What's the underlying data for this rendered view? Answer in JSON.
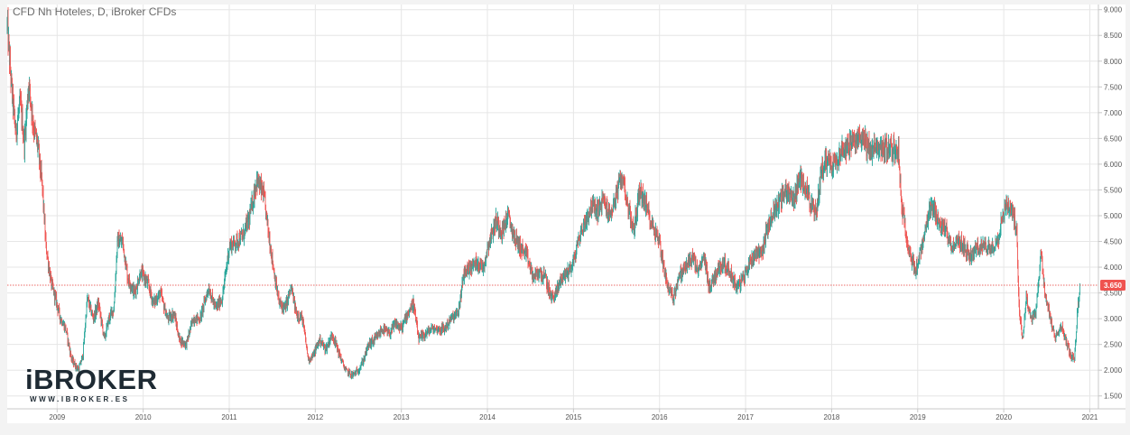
{
  "title": "CFD Nh Hoteles, D, iBroker CFDs",
  "logo": {
    "text": "iBROKER",
    "url": "WWW.IBROKER.ES"
  },
  "colors": {
    "up": "#26a69a",
    "down": "#ef5350",
    "grid": "#e6e6e6",
    "price_line": "#e53935",
    "axis_text": "#555555",
    "last_price_bg": "#ef5350",
    "logo_dark": "#1e2a33",
    "logo_accent": "#2fb3c9"
  },
  "chart_data": {
    "type": "line",
    "style": "candlestick",
    "interval": "D",
    "x_range": [
      2008.42,
      2021.1
    ],
    "ylim": [
      1.25,
      9.1
    ],
    "y_ticks": [
      {
        "value": 1.5,
        "label": "1.500"
      },
      {
        "value": 2.0,
        "label": "2.000"
      },
      {
        "value": 2.5,
        "label": "2.500"
      },
      {
        "value": 3.0,
        "label": "3.000"
      },
      {
        "value": 3.5,
        "label": "3.500"
      },
      {
        "value": 4.0,
        "label": "4.000"
      },
      {
        "value": 4.5,
        "label": "4.500"
      },
      {
        "value": 5.0,
        "label": "5.000"
      },
      {
        "value": 5.5,
        "label": "5.500"
      },
      {
        "value": 6.0,
        "label": "6.000"
      },
      {
        "value": 6.5,
        "label": "6.500"
      },
      {
        "value": 7.0,
        "label": "7.000"
      },
      {
        "value": 7.5,
        "label": "7.500"
      },
      {
        "value": 8.0,
        "label": "8.000"
      },
      {
        "value": 8.5,
        "label": "8.500"
      },
      {
        "value": 9.0,
        "label": "9.000"
      }
    ],
    "x_ticks": [
      {
        "value": 2009,
        "label": "2009"
      },
      {
        "value": 2010,
        "label": "2010"
      },
      {
        "value": 2011,
        "label": "2011"
      },
      {
        "value": 2012,
        "label": "2012"
      },
      {
        "value": 2013,
        "label": "2013"
      },
      {
        "value": 2014,
        "label": "2014"
      },
      {
        "value": 2015,
        "label": "2015"
      },
      {
        "value": 2016,
        "label": "2016"
      },
      {
        "value": 2017,
        "label": "2017"
      },
      {
        "value": 2018,
        "label": "2018"
      },
      {
        "value": 2019,
        "label": "2019"
      },
      {
        "value": 2020,
        "label": "2020"
      },
      {
        "value": 2021,
        "label": "2021"
      }
    ],
    "last_price": {
      "value": 3.65,
      "label": "3.650"
    },
    "grid": true,
    "price_path": [
      [
        2008.42,
        8.7
      ],
      [
        2008.47,
        7.5
      ],
      [
        2008.52,
        6.6
      ],
      [
        2008.57,
        7.2
      ],
      [
        2008.62,
        6.4
      ],
      [
        2008.67,
        7.6
      ],
      [
        2008.72,
        6.8
      ],
      [
        2008.78,
        6.3
      ],
      [
        2008.83,
        5.5
      ],
      [
        2008.87,
        4.4
      ],
      [
        2008.93,
        3.7
      ],
      [
        2008.98,
        3.4
      ],
      [
        2009.04,
        3.0
      ],
      [
        2009.1,
        2.8
      ],
      [
        2009.17,
        2.2
      ],
      [
        2009.25,
        2.0
      ],
      [
        2009.3,
        2.3
      ],
      [
        2009.35,
        3.4
      ],
      [
        2009.42,
        3.0
      ],
      [
        2009.48,
        3.3
      ],
      [
        2009.55,
        2.6
      ],
      [
        2009.6,
        3.0
      ],
      [
        2009.66,
        3.2
      ],
      [
        2009.7,
        4.5
      ],
      [
        2009.76,
        4.5
      ],
      [
        2009.82,
        3.8
      ],
      [
        2009.9,
        3.5
      ],
      [
        2009.97,
        3.9
      ],
      [
        2010.05,
        3.7
      ],
      [
        2010.12,
        3.3
      ],
      [
        2010.2,
        3.5
      ],
      [
        2010.28,
        3.0
      ],
      [
        2010.36,
        3.1
      ],
      [
        2010.42,
        2.6
      ],
      [
        2010.5,
        2.5
      ],
      [
        2010.58,
        3.0
      ],
      [
        2010.66,
        3.0
      ],
      [
        2010.76,
        3.6
      ],
      [
        2010.84,
        3.2
      ],
      [
        2010.92,
        3.4
      ],
      [
        2011.0,
        4.4
      ],
      [
        2011.08,
        4.5
      ],
      [
        2011.16,
        4.6
      ],
      [
        2011.24,
        5.0
      ],
      [
        2011.32,
        5.7
      ],
      [
        2011.4,
        5.4
      ],
      [
        2011.47,
        4.5
      ],
      [
        2011.53,
        3.8
      ],
      [
        2011.58,
        3.3
      ],
      [
        2011.65,
        3.2
      ],
      [
        2011.72,
        3.6
      ],
      [
        2011.78,
        3.1
      ],
      [
        2011.85,
        3.0
      ],
      [
        2011.92,
        2.2
      ],
      [
        2011.98,
        2.3
      ],
      [
        2012.05,
        2.6
      ],
      [
        2012.12,
        2.4
      ],
      [
        2012.2,
        2.7
      ],
      [
        2012.28,
        2.3
      ],
      [
        2012.35,
        2.0
      ],
      [
        2012.43,
        1.9
      ],
      [
        2012.5,
        2.0
      ],
      [
        2012.56,
        2.2
      ],
      [
        2012.62,
        2.5
      ],
      [
        2012.7,
        2.6
      ],
      [
        2012.78,
        2.8
      ],
      [
        2012.86,
        2.7
      ],
      [
        2012.93,
        2.9
      ],
      [
        2013.0,
        2.8
      ],
      [
        2013.07,
        3.1
      ],
      [
        2013.14,
        3.3
      ],
      [
        2013.2,
        2.6
      ],
      [
        2013.28,
        2.7
      ],
      [
        2013.35,
        2.8
      ],
      [
        2013.42,
        2.8
      ],
      [
        2013.5,
        2.8
      ],
      [
        2013.58,
        3.0
      ],
      [
        2013.66,
        3.1
      ],
      [
        2013.73,
        3.9
      ],
      [
        2013.8,
        4.0
      ],
      [
        2013.88,
        4.1
      ],
      [
        2013.95,
        4.0
      ],
      [
        2014.02,
        4.5
      ],
      [
        2014.1,
        4.9
      ],
      [
        2014.17,
        4.7
      ],
      [
        2014.24,
        5.0
      ],
      [
        2014.31,
        4.6
      ],
      [
        2014.38,
        4.4
      ],
      [
        2014.46,
        4.2
      ],
      [
        2014.53,
        3.8
      ],
      [
        2014.6,
        3.9
      ],
      [
        2014.67,
        3.8
      ],
      [
        2014.74,
        3.4
      ],
      [
        2014.8,
        3.5
      ],
      [
        2014.86,
        3.8
      ],
      [
        2014.93,
        3.9
      ],
      [
        2015.0,
        4.1
      ],
      [
        2015.07,
        4.6
      ],
      [
        2015.14,
        4.9
      ],
      [
        2015.21,
        5.2
      ],
      [
        2015.28,
        5.1
      ],
      [
        2015.35,
        5.3
      ],
      [
        2015.42,
        5.0
      ],
      [
        2015.5,
        5.4
      ],
      [
        2015.57,
        5.8
      ],
      [
        2015.63,
        5.2
      ],
      [
        2015.7,
        4.7
      ],
      [
        2015.77,
        5.5
      ],
      [
        2015.84,
        5.2
      ],
      [
        2015.92,
        4.8
      ],
      [
        2016.0,
        4.5
      ],
      [
        2016.05,
        4.0
      ],
      [
        2016.1,
        3.6
      ],
      [
        2016.16,
        3.4
      ],
      [
        2016.22,
        3.8
      ],
      [
        2016.3,
        4.0
      ],
      [
        2016.38,
        4.2
      ],
      [
        2016.45,
        3.9
      ],
      [
        2016.52,
        4.2
      ],
      [
        2016.58,
        3.6
      ],
      [
        2016.66,
        3.9
      ],
      [
        2016.74,
        4.1
      ],
      [
        2016.82,
        3.9
      ],
      [
        2016.9,
        3.6
      ],
      [
        2016.98,
        3.8
      ],
      [
        2017.05,
        4.1
      ],
      [
        2017.12,
        4.3
      ],
      [
        2017.19,
        4.3
      ],
      [
        2017.26,
        4.8
      ],
      [
        2017.33,
        5.1
      ],
      [
        2017.4,
        5.3
      ],
      [
        2017.48,
        5.5
      ],
      [
        2017.55,
        5.3
      ],
      [
        2017.63,
        5.7
      ],
      [
        2017.7,
        5.6
      ],
      [
        2017.76,
        5.2
      ],
      [
        2017.82,
        5.0
      ],
      [
        2017.88,
        5.9
      ],
      [
        2017.95,
        6.1
      ],
      [
        2018.02,
        6.0
      ],
      [
        2018.08,
        6.2
      ],
      [
        2018.15,
        6.3
      ],
      [
        2018.22,
        6.4
      ],
      [
        2018.28,
        6.4
      ],
      [
        2018.35,
        6.6
      ],
      [
        2018.42,
        6.3
      ],
      [
        2018.48,
        6.3
      ],
      [
        2018.55,
        6.3
      ],
      [
        2018.62,
        6.3
      ],
      [
        2018.7,
        6.3
      ],
      [
        2018.78,
        6.25
      ],
      [
        2018.81,
        5.2
      ],
      [
        2018.86,
        4.7
      ],
      [
        2018.91,
        4.3
      ],
      [
        2018.97,
        3.9
      ],
      [
        2019.02,
        4.2
      ],
      [
        2019.08,
        4.6
      ],
      [
        2019.14,
        5.1
      ],
      [
        2019.2,
        5.1
      ],
      [
        2019.26,
        4.8
      ],
      [
        2019.33,
        4.7
      ],
      [
        2019.4,
        4.4
      ],
      [
        2019.47,
        4.5
      ],
      [
        2019.54,
        4.4
      ],
      [
        2019.6,
        4.2
      ],
      [
        2019.66,
        4.3
      ],
      [
        2019.73,
        4.4
      ],
      [
        2019.8,
        4.4
      ],
      [
        2019.87,
        4.4
      ],
      [
        2019.94,
        4.6
      ],
      [
        2020.0,
        5.1
      ],
      [
        2020.05,
        5.2
      ],
      [
        2020.1,
        5.1
      ],
      [
        2020.15,
        4.7
      ],
      [
        2020.18,
        3.2
      ],
      [
        2020.22,
        2.6
      ],
      [
        2020.26,
        3.4
      ],
      [
        2020.32,
        3.0
      ],
      [
        2020.38,
        3.2
      ],
      [
        2020.43,
        4.3
      ],
      [
        2020.48,
        3.5
      ],
      [
        2020.54,
        3.0
      ],
      [
        2020.6,
        2.6
      ],
      [
        2020.66,
        2.9
      ],
      [
        2020.72,
        2.6
      ],
      [
        2020.77,
        2.3
      ],
      [
        2020.82,
        2.2
      ],
      [
        2020.86,
        3.2
      ],
      [
        2020.89,
        3.65
      ]
    ]
  }
}
